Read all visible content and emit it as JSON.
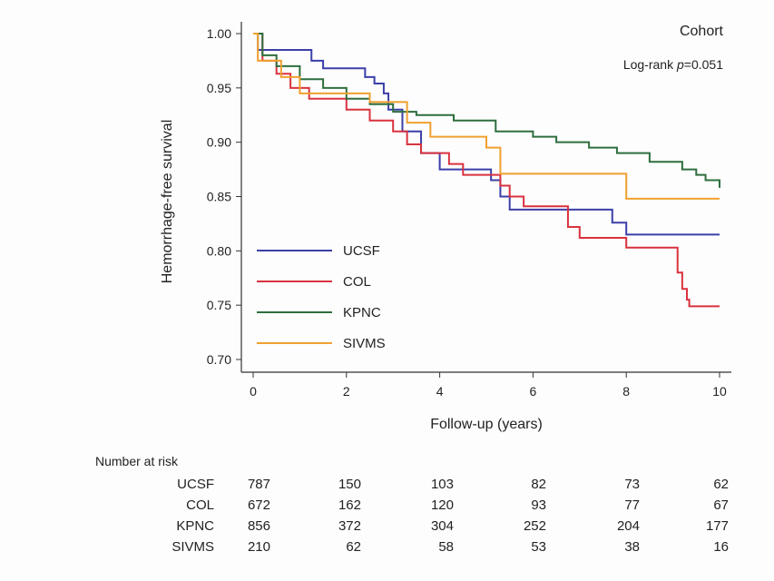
{
  "chart_data": {
    "type": "line",
    "subtype": "kaplan-meier step",
    "title": "Cohort",
    "annotation": {
      "prefix": "Log-rank ",
      "italic": "p",
      "suffix": "=0.051"
    },
    "xlabel": "Follow-up (years)",
    "ylabel": "Hemorrhage-free survival",
    "xlim": [
      0,
      10
    ],
    "ylim": [
      0.7,
      1.0
    ],
    "xticks": [
      "0",
      "2",
      "4",
      "6",
      "8",
      "10"
    ],
    "yticks": [
      "1.00",
      "0.95",
      "0.90",
      "0.85",
      "0.80",
      "0.75",
      "0.70"
    ],
    "grid": false,
    "legend_position": "bottom-left inside",
    "series": [
      {
        "name": "UCSF",
        "color": "#3b3fa8",
        "x": [
          0,
          0.1,
          1.25,
          1.5,
          2.4,
          2.6,
          2.8,
          2.9,
          3.2,
          3.6,
          4.0,
          5.1,
          5.3,
          5.5,
          7.7,
          8.0,
          10
        ],
        "y": [
          1.0,
          0.985,
          0.975,
          0.968,
          0.96,
          0.954,
          0.945,
          0.93,
          0.91,
          0.89,
          0.875,
          0.865,
          0.85,
          0.838,
          0.826,
          0.815,
          0.815
        ]
      },
      {
        "name": "COL",
        "color": "#d9323f",
        "x": [
          0,
          0.2,
          0.5,
          0.8,
          1.2,
          2.0,
          2.5,
          3.0,
          3.3,
          3.6,
          4.2,
          4.5,
          5.3,
          5.5,
          5.8,
          6.75,
          7.0,
          8.0,
          9.1,
          9.2,
          9.3,
          9.35,
          10
        ],
        "y": [
          1.0,
          0.975,
          0.963,
          0.95,
          0.94,
          0.93,
          0.92,
          0.91,
          0.898,
          0.89,
          0.88,
          0.87,
          0.86,
          0.85,
          0.841,
          0.822,
          0.812,
          0.803,
          0.78,
          0.765,
          0.755,
          0.749,
          0.749
        ]
      },
      {
        "name": "KPNC",
        "color": "#2e6e3e",
        "x": [
          0,
          0.2,
          0.5,
          1.0,
          1.5,
          2.0,
          2.5,
          3.0,
          3.5,
          4.3,
          5.2,
          6.0,
          6.5,
          7.2,
          7.8,
          8.5,
          9.2,
          9.5,
          9.7,
          10
        ],
        "y": [
          1.0,
          0.98,
          0.97,
          0.958,
          0.95,
          0.94,
          0.935,
          0.928,
          0.925,
          0.92,
          0.91,
          0.905,
          0.9,
          0.895,
          0.89,
          0.882,
          0.875,
          0.87,
          0.865,
          0.858
        ]
      },
      {
        "name": "SIVMS",
        "color": "#f0a030",
        "x": [
          0,
          0.1,
          0.6,
          1.0,
          2.5,
          3.3,
          3.8,
          5.0,
          5.3,
          8.0,
          10
        ],
        "y": [
          1.0,
          0.975,
          0.96,
          0.945,
          0.937,
          0.918,
          0.905,
          0.895,
          0.871,
          0.848,
          0.848
        ]
      }
    ],
    "risk_table": {
      "title": "Number at risk",
      "rows": [
        {
          "label": "UCSF",
          "values": [
            "787",
            "150",
            "103",
            "82",
            "73",
            "62"
          ]
        },
        {
          "label": "COL",
          "values": [
            "672",
            "162",
            "120",
            "93",
            "77",
            "67"
          ]
        },
        {
          "label": "KPNC",
          "values": [
            "856",
            "372",
            "304",
            "252",
            "204",
            "177"
          ]
        },
        {
          "label": "SIVMS",
          "values": [
            "210",
            "62",
            "58",
            "53",
            "38",
            "16"
          ]
        }
      ]
    }
  }
}
